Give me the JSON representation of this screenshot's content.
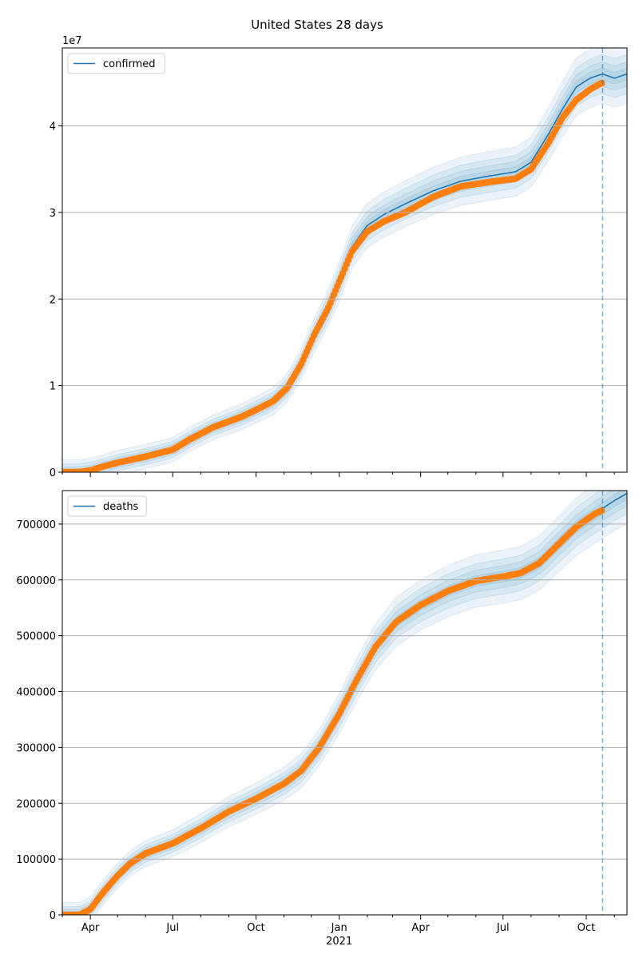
{
  "figure": {
    "title": "United States 28 days"
  },
  "colors": {
    "model_line": "#1f77b4",
    "band": "#1f77b4",
    "observed": "#ff7f0e",
    "grid": "#b0b0b0",
    "forecast_line": "#1f77b4"
  },
  "chart_data": [
    {
      "type": "line",
      "legend": "confirmed",
      "legend_position": "top-left",
      "grid": "horizontal",
      "y_offset_label": "1e7",
      "y_scale": 10000000,
      "ylim": [
        0,
        49000000
      ],
      "yticks": [
        0,
        10000000,
        20000000,
        30000000,
        40000000
      ],
      "ytick_labels": [
        "0",
        "1",
        "2",
        "3",
        "4"
      ],
      "forecast_start": "2021-10-19",
      "series": [
        {
          "name": "confirmed",
          "role": "model",
          "points": [
            [
              "2020-03-01",
              0
            ],
            [
              "2020-03-20",
              20000
            ],
            [
              "2020-04-01",
              200000
            ],
            [
              "2020-04-15",
              600000
            ],
            [
              "2020-05-01",
              1100000
            ],
            [
              "2020-06-01",
              1800000
            ],
            [
              "2020-07-01",
              2600000
            ],
            [
              "2020-07-20",
              3800000
            ],
            [
              "2020-08-15",
              5200000
            ],
            [
              "2020-09-15",
              6400000
            ],
            [
              "2020-10-01",
              7200000
            ],
            [
              "2020-10-20",
              8200000
            ],
            [
              "2020-11-05",
              9800000
            ],
            [
              "2020-11-20",
              12500000
            ],
            [
              "2020-12-05",
              16000000
            ],
            [
              "2020-12-20",
              19000000
            ],
            [
              "2021-01-01",
              22000000
            ],
            [
              "2021-01-15",
              26000000
            ],
            [
              "2021-02-01",
              28500000
            ],
            [
              "2021-02-20",
              29800000
            ],
            [
              "2021-03-15",
              31000000
            ],
            [
              "2021-04-15",
              32500000
            ],
            [
              "2021-05-15",
              33600000
            ],
            [
              "2021-06-15",
              34200000
            ],
            [
              "2021-07-15",
              34700000
            ],
            [
              "2021-08-01",
              35800000
            ],
            [
              "2021-08-20",
              39000000
            ],
            [
              "2021-09-05",
              42000000
            ],
            [
              "2021-09-20",
              44500000
            ],
            [
              "2021-10-05",
              45500000
            ],
            [
              "2021-10-19",
              46000000
            ],
            [
              "2021-11-01",
              45500000
            ],
            [
              "2021-11-15",
              46000000
            ]
          ]
        },
        {
          "name": "observed",
          "role": "observed",
          "points": [
            [
              "2020-03-01",
              0
            ],
            [
              "2020-03-20",
              20000
            ],
            [
              "2020-04-01",
              200000
            ],
            [
              "2020-04-15",
              650000
            ],
            [
              "2020-05-01",
              1100000
            ],
            [
              "2020-06-01",
              1800000
            ],
            [
              "2020-07-01",
              2600000
            ],
            [
              "2020-07-20",
              3800000
            ],
            [
              "2020-08-15",
              5200000
            ],
            [
              "2020-09-15",
              6400000
            ],
            [
              "2020-10-01",
              7200000
            ],
            [
              "2020-10-20",
              8200000
            ],
            [
              "2020-11-05",
              9800000
            ],
            [
              "2020-11-20",
              12500000
            ],
            [
              "2020-12-05",
              16000000
            ],
            [
              "2020-12-20",
              19000000
            ],
            [
              "2021-01-01",
              22000000
            ],
            [
              "2021-01-15",
              25500000
            ],
            [
              "2021-02-01",
              27800000
            ],
            [
              "2021-02-20",
              29000000
            ],
            [
              "2021-03-15",
              30000000
            ],
            [
              "2021-04-15",
              31800000
            ],
            [
              "2021-05-15",
              33000000
            ],
            [
              "2021-06-15",
              33500000
            ],
            [
              "2021-07-15",
              33900000
            ],
            [
              "2021-08-01",
              35000000
            ],
            [
              "2021-08-20",
              38000000
            ],
            [
              "2021-09-05",
              41000000
            ],
            [
              "2021-09-20",
              43000000
            ],
            [
              "2021-10-05",
              44200000
            ],
            [
              "2021-10-19",
              45000000
            ]
          ]
        }
      ]
    },
    {
      "type": "line",
      "legend": "deaths",
      "legend_position": "top-left",
      "grid": "horizontal",
      "y_scale": 1,
      "ylim": [
        0,
        760000
      ],
      "yticks": [
        0,
        100000,
        200000,
        300000,
        400000,
        500000,
        600000,
        700000
      ],
      "ytick_labels": [
        "0",
        "100000",
        "200000",
        "300000",
        "400000",
        "500000",
        "600000",
        "700000"
      ],
      "forecast_start": "2021-10-19",
      "xticks": [
        "2020-04-01",
        "2020-07-01",
        "2020-10-01",
        "2021-01-01",
        "2021-04-01",
        "2021-07-01",
        "2021-10-01"
      ],
      "xtick_labels": [
        "Apr",
        "Jul",
        "Oct",
        "Jan",
        "Apr",
        "Jul",
        "Oct"
      ],
      "xlabel_year": "2021",
      "series": [
        {
          "name": "deaths",
          "role": "model",
          "points": [
            [
              "2020-03-01",
              0
            ],
            [
              "2020-03-20",
              0
            ],
            [
              "2020-04-01",
              10000
            ],
            [
              "2020-04-15",
              40000
            ],
            [
              "2020-05-01",
              70000
            ],
            [
              "2020-05-15",
              92000
            ],
            [
              "2020-06-01",
              110000
            ],
            [
              "2020-07-01",
              128000
            ],
            [
              "2020-08-01",
              155000
            ],
            [
              "2020-09-01",
              185000
            ],
            [
              "2020-10-01",
              208000
            ],
            [
              "2020-11-01",
              235000
            ],
            [
              "2020-11-20",
              258000
            ],
            [
              "2020-12-10",
              300000
            ],
            [
              "2021-01-01",
              360000
            ],
            [
              "2021-01-20",
              420000
            ],
            [
              "2021-02-10",
              480000
            ],
            [
              "2021-03-05",
              525000
            ],
            [
              "2021-04-01",
              555000
            ],
            [
              "2021-05-01",
              580000
            ],
            [
              "2021-06-01",
              598000
            ],
            [
              "2021-07-01",
              606000
            ],
            [
              "2021-07-20",
              612000
            ],
            [
              "2021-08-10",
              630000
            ],
            [
              "2021-09-01",
              665000
            ],
            [
              "2021-09-20",
              695000
            ],
            [
              "2021-10-10",
              718000
            ],
            [
              "2021-10-19",
              728000
            ],
            [
              "2021-11-01",
              742000
            ],
            [
              "2021-11-15",
              755000
            ]
          ]
        },
        {
          "name": "observed",
          "role": "observed",
          "points": [
            [
              "2020-03-01",
              0
            ],
            [
              "2020-03-20",
              0
            ],
            [
              "2020-04-01",
              10000
            ],
            [
              "2020-04-15",
              40000
            ],
            [
              "2020-05-01",
              70000
            ],
            [
              "2020-05-15",
              92000
            ],
            [
              "2020-06-01",
              110000
            ],
            [
              "2020-07-01",
              128000
            ],
            [
              "2020-08-01",
              155000
            ],
            [
              "2020-09-01",
              185000
            ],
            [
              "2020-10-01",
              208000
            ],
            [
              "2020-11-01",
              235000
            ],
            [
              "2020-11-20",
              258000
            ],
            [
              "2020-12-10",
              300000
            ],
            [
              "2021-01-01",
              360000
            ],
            [
              "2021-01-20",
              420000
            ],
            [
              "2021-02-10",
              480000
            ],
            [
              "2021-03-05",
              525000
            ],
            [
              "2021-04-01",
              555000
            ],
            [
              "2021-05-01",
              580000
            ],
            [
              "2021-06-01",
              598000
            ],
            [
              "2021-07-01",
              606000
            ],
            [
              "2021-07-20",
              612000
            ],
            [
              "2021-08-10",
              630000
            ],
            [
              "2021-09-01",
              665000
            ],
            [
              "2021-09-20",
              695000
            ],
            [
              "2021-10-10",
              718000
            ],
            [
              "2021-10-19",
              725000
            ]
          ]
        }
      ]
    }
  ]
}
